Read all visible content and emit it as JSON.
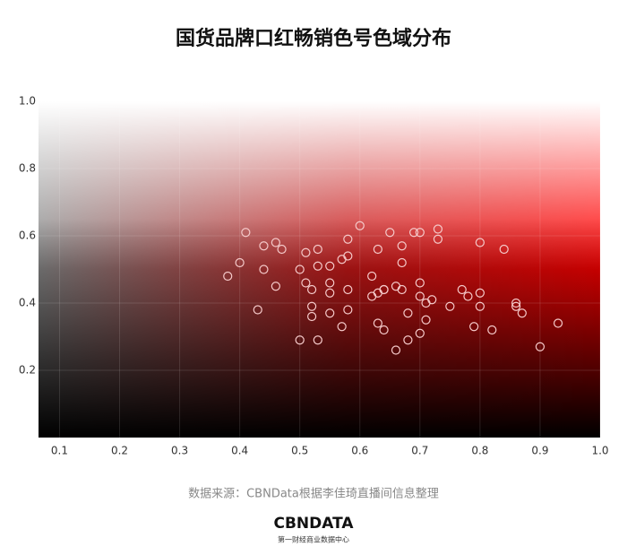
{
  "chart_data": {
    "type": "scatter",
    "title": "国货品牌口红畅销色号色域分布",
    "x": [
      0.41,
      0.38,
      0.4,
      0.44,
      0.44,
      0.43,
      0.46,
      0.46,
      0.47,
      0.5,
      0.51,
      0.53,
      0.53,
      0.51,
      0.52,
      0.52,
      0.52,
      0.5,
      0.53,
      0.55,
      0.55,
      0.55,
      0.55,
      0.57,
      0.57,
      0.58,
      0.58,
      0.58,
      0.58,
      0.6,
      0.62,
      0.62,
      0.63,
      0.63,
      0.63,
      0.64,
      0.64,
      0.64,
      0.65,
      0.66,
      0.67,
      0.67,
      0.67,
      0.66,
      0.68,
      0.68,
      0.69,
      0.7,
      0.7,
      0.7,
      0.7,
      0.71,
      0.71,
      0.72,
      0.73,
      0.73,
      0.75,
      0.77,
      0.78,
      0.79,
      0.8,
      0.8,
      0.8,
      0.82,
      0.84,
      0.86,
      0.86,
      0.87,
      0.9,
      0.93
    ],
    "values": [
      0.61,
      0.48,
      0.52,
      0.57,
      0.5,
      0.38,
      0.45,
      0.58,
      0.56,
      0.5,
      0.55,
      0.56,
      0.51,
      0.46,
      0.44,
      0.39,
      0.36,
      0.29,
      0.29,
      0.51,
      0.46,
      0.43,
      0.37,
      0.33,
      0.53,
      0.59,
      0.54,
      0.44,
      0.38,
      0.63,
      0.48,
      0.42,
      0.43,
      0.56,
      0.34,
      0.32,
      0.44,
      0.44,
      0.61,
      0.45,
      0.44,
      0.52,
      0.57,
      0.26,
      0.37,
      0.29,
      0.61,
      0.61,
      0.46,
      0.42,
      0.31,
      0.35,
      0.4,
      0.41,
      0.59,
      0.62,
      0.39,
      0.44,
      0.42,
      0.33,
      0.43,
      0.58,
      0.39,
      0.32,
      0.56,
      0.39,
      0.4,
      0.37,
      0.27,
      0.34
    ],
    "color": "#f5caca",
    "xlim": [
      0.065,
      1.0
    ],
    "ylim": [
      0,
      1.0
    ],
    "xticks": [
      0.1,
      0.2,
      0.3,
      0.4,
      0.5,
      0.6,
      0.7,
      0.8,
      0.9,
      {
        "value": 1.0,
        "label": "1.0"
      }
    ],
    "yticks": [
      0.2,
      0.4,
      0.6,
      0.8,
      {
        "value": 1.0,
        "label": "1.0"
      }
    ],
    "grid": true,
    "source": "数据来源：CBNData根据李佳琦直播间信息整理",
    "logo": "CBNDATA",
    "logo_subtitle": "第一财经商业数据中心"
  }
}
